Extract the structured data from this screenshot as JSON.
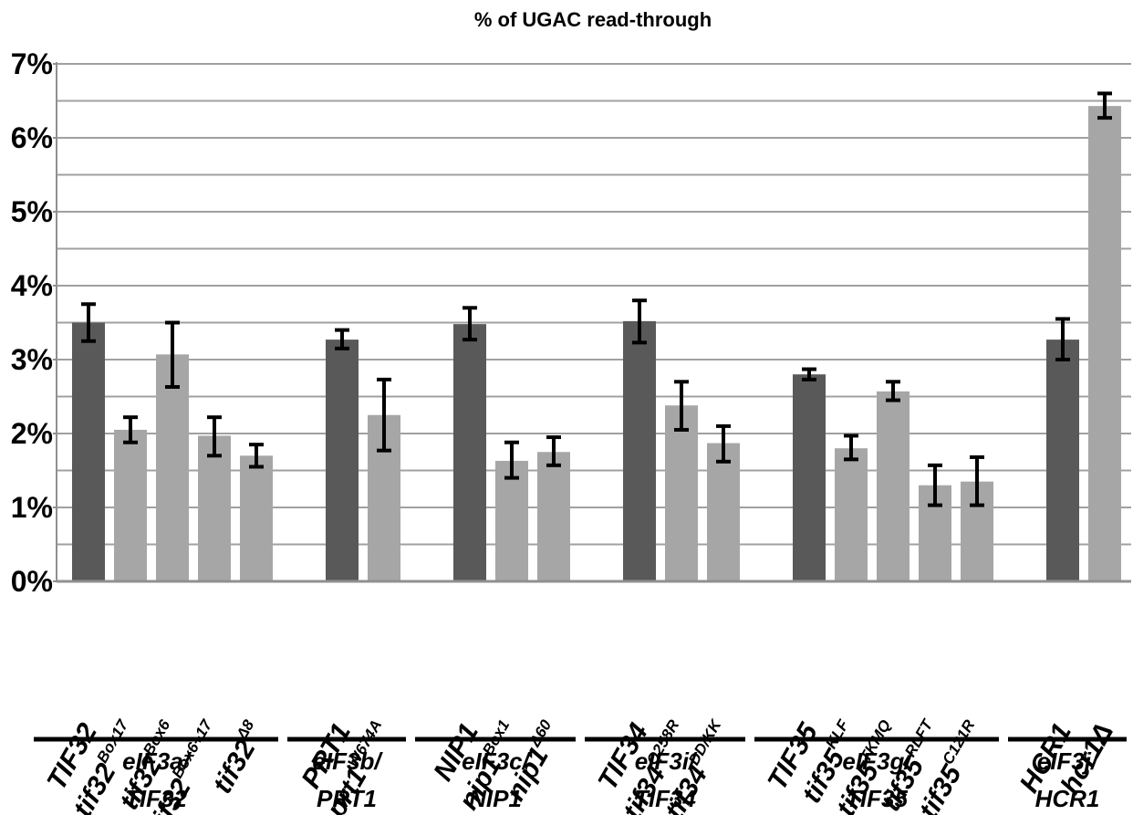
{
  "chart_data": {
    "type": "bar",
    "title": "% of UGAC read-through",
    "ylim": [
      0,
      7
    ],
    "yticks": [
      "0%",
      "1%",
      "2%",
      "3%",
      "4%",
      "5%",
      "6%",
      "7%"
    ],
    "grid": true,
    "colors": {
      "wild_type": "#595959",
      "mutant": "#a6a6a6",
      "error_bar": "#000000",
      "grid": "#a0a0a0",
      "axis": "#909090"
    },
    "groups": [
      {
        "line1": "eIF3a/",
        "line2": "TIF32",
        "bars": [
          {
            "base": "TIF32",
            "sup": "",
            "kind": "wild_type",
            "value": 3.5,
            "err": [
              3.25,
              3.75
            ]
          },
          {
            "base": "tif32",
            "sup": "Box17",
            "kind": "mutant",
            "value": 2.05,
            "err": [
              1.88,
              2.22
            ]
          },
          {
            "base": "tif32",
            "sup": "Box6",
            "kind": "mutant",
            "value": 3.07,
            "err": [
              2.63,
              3.5
            ]
          },
          {
            "base": "tif32",
            "sup": "Box6+17",
            "kind": "mutant",
            "value": 1.97,
            "err": [
              1.7,
              2.22
            ]
          },
          {
            "base": "tif32",
            "sup": "Δ8",
            "kind": "mutant",
            "value": 1.7,
            "err": [
              1.55,
              1.85
            ]
          }
        ]
      },
      {
        "line1": "eIF3b/",
        "line2": "PRT1",
        "bars": [
          {
            "base": "PRT1",
            "sup": "",
            "kind": "wild_type",
            "value": 3.27,
            "err": [
              3.15,
              3.4
            ]
          },
          {
            "base": "prt1",
            "sup": "W674A",
            "kind": "mutant",
            "value": 2.25,
            "err": [
              1.77,
              2.73
            ]
          }
        ]
      },
      {
        "line1": "eIF3c/",
        "line2": "NIP1",
        "bars": [
          {
            "base": "NIP1",
            "sup": "",
            "kind": "wild_type",
            "value": 3.48,
            "err": [
              3.27,
              3.7
            ]
          },
          {
            "base": "nip1",
            "sup": "Box1",
            "kind": "mutant",
            "value": 1.63,
            "err": [
              1.4,
              1.88
            ]
          },
          {
            "base": "nip1",
            "sup": "Δ60",
            "kind": "mutant",
            "value": 1.75,
            "err": [
              1.57,
              1.95
            ]
          }
        ]
      },
      {
        "line1": "eIF3i/",
        "line2": "TIF34",
        "bars": [
          {
            "base": "TIF34",
            "sup": "",
            "kind": "wild_type",
            "value": 3.52,
            "err": [
              3.23,
              3.8
            ]
          },
          {
            "base": "tif34",
            "sup": "Q258R",
            "kind": "mutant",
            "value": 2.38,
            "err": [
              2.05,
              2.7
            ]
          },
          {
            "base": "tif34",
            "sup": "DD/KK",
            "kind": "mutant",
            "value": 1.87,
            "err": [
              1.62,
              2.1
            ]
          }
        ]
      },
      {
        "line1": "eIF3g/",
        "line2": "TIF35",
        "bars": [
          {
            "base": "TIF35",
            "sup": "",
            "kind": "wild_type",
            "value": 2.8,
            "err": [
              2.73,
              2.87
            ]
          },
          {
            "base": "tif35",
            "sup": "KLF",
            "kind": "mutant",
            "value": 1.8,
            "err": [
              1.65,
              1.97
            ]
          },
          {
            "base": "tif35",
            "sup": "TKMQ",
            "kind": "mutant",
            "value": 2.57,
            "err": [
              2.45,
              2.7
            ]
          },
          {
            "base": "tif35",
            "sup": "RLFT",
            "kind": "mutant",
            "value": 1.3,
            "err": [
              1.03,
              1.57
            ]
          },
          {
            "base": "tif35",
            "sup": "C121R",
            "kind": "mutant",
            "value": 1.35,
            "err": [
              1.03,
              1.68
            ]
          }
        ]
      },
      {
        "line1": "eIF3j/",
        "line2": "HCR1",
        "bars": [
          {
            "base": "HCR1",
            "sup": "",
            "kind": "wild_type",
            "value": 3.27,
            "err": [
              3.0,
              3.55
            ]
          },
          {
            "base": "hcr1Δ",
            "sup": "",
            "kind": "mutant",
            "value": 6.43,
            "err": [
              6.27,
              6.6
            ]
          }
        ]
      }
    ]
  }
}
